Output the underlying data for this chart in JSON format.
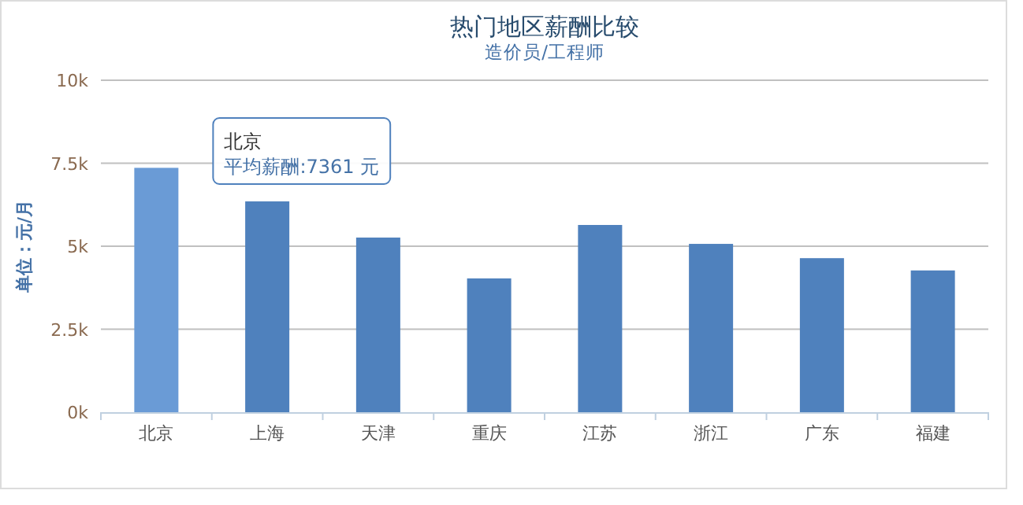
{
  "chart_data": {
    "type": "bar",
    "title": "热门地区薪酬比较",
    "subtitle": "造价员/工程师",
    "ylabel": "单位：元/月",
    "categories": [
      "北京",
      "上海",
      "天津",
      "重庆",
      "江苏",
      "浙江",
      "广东",
      "福建"
    ],
    "values": [
      7361,
      6350,
      5260,
      4030,
      5640,
      5070,
      4640,
      4270
    ],
    "colors": [
      "#6a9bd6",
      "#4f81bd",
      "#4f81bd",
      "#4f81bd",
      "#4f81bd",
      "#4f81bd",
      "#4f81bd",
      "#4f81bd"
    ],
    "ylim": [
      0,
      10000
    ],
    "yticks": [
      {
        "value": 0,
        "label": "0k"
      },
      {
        "value": 2500,
        "label": "2.5k"
      },
      {
        "value": 5000,
        "label": "5k"
      },
      {
        "value": 7500,
        "label": "7.5k"
      },
      {
        "value": 10000,
        "label": "10k"
      }
    ],
    "grid": "y",
    "annotations": [
      "北京",
      "平均薪酬:7361 元"
    ]
  }
}
